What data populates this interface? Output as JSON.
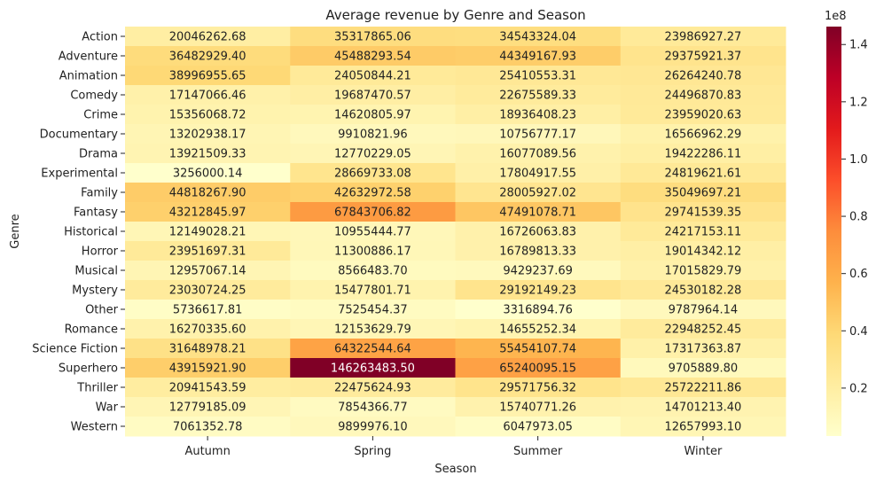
{
  "chart_data": {
    "type": "heatmap",
    "title": "Average revenue by Genre and Season",
    "xlabel": "Season",
    "ylabel": "Genre",
    "x": [
      "Autumn",
      "Spring",
      "Summer",
      "Winter"
    ],
    "y": [
      "Action",
      "Adventure",
      "Animation",
      "Comedy",
      "Crime",
      "Documentary",
      "Drama",
      "Experimental",
      "Family",
      "Fantasy",
      "Historical",
      "Horror",
      "Musical",
      "Mystery",
      "Other",
      "Romance",
      "Science Fiction",
      "Superhero",
      "Thriller",
      "War",
      "Western"
    ],
    "values": [
      [
        20046262.68,
        35317865.06,
        34543324.04,
        23986927.27
      ],
      [
        36482929.4,
        45488293.54,
        44349167.93,
        29375921.37
      ],
      [
        38996955.65,
        24050844.21,
        25410553.31,
        26264240.78
      ],
      [
        17147066.46,
        19687470.57,
        22675589.33,
        24496870.83
      ],
      [
        15356068.72,
        14620805.97,
        18936408.23,
        23959020.63
      ],
      [
        13202938.17,
        9910821.96,
        10756777.17,
        16566962.29
      ],
      [
        13921509.33,
        12770229.05,
        16077089.56,
        19422286.11
      ],
      [
        3256000.14,
        28669733.08,
        17804917.55,
        24819621.61
      ],
      [
        44818267.9,
        42632972.58,
        28005927.02,
        35049697.21
      ],
      [
        43212845.97,
        67843706.82,
        47491078.71,
        29741539.35
      ],
      [
        12149028.21,
        10955444.77,
        16726063.83,
        24217153.11
      ],
      [
        23951697.31,
        11300886.17,
        16789813.33,
        19014342.12
      ],
      [
        12957067.14,
        8566483.7,
        9429237.69,
        17015829.79
      ],
      [
        23030724.25,
        15477801.71,
        29192149.23,
        24530182.28
      ],
      [
        5736617.81,
        7525454.37,
        3316894.76,
        9787964.14
      ],
      [
        16270335.6,
        12153629.79,
        14655252.34,
        22948252.45
      ],
      [
        31648978.21,
        64322544.64,
        55454107.74,
        17317363.87
      ],
      [
        43915921.9,
        146263483.5,
        65240095.15,
        9705889.8
      ],
      [
        20941543.59,
        22475624.93,
        29571756.32,
        25722211.86
      ],
      [
        12779185.09,
        7854366.77,
        15740771.26,
        14701213.4
      ],
      [
        7061352.78,
        9899976.1,
        6047973.05,
        12657993.1
      ]
    ],
    "value_labels": [
      [
        "20046262.68",
        "35317865.06",
        "34543324.04",
        "23986927.27"
      ],
      [
        "36482929.40",
        "45488293.54",
        "44349167.93",
        "29375921.37"
      ],
      [
        "38996955.65",
        "24050844.21",
        "25410553.31",
        "26264240.78"
      ],
      [
        "17147066.46",
        "19687470.57",
        "22675589.33",
        "24496870.83"
      ],
      [
        "15356068.72",
        "14620805.97",
        "18936408.23",
        "23959020.63"
      ],
      [
        "13202938.17",
        "9910821.96",
        "10756777.17",
        "16566962.29"
      ],
      [
        "13921509.33",
        "12770229.05",
        "16077089.56",
        "19422286.11"
      ],
      [
        "3256000.14",
        "28669733.08",
        "17804917.55",
        "24819621.61"
      ],
      [
        "44818267.90",
        "42632972.58",
        "28005927.02",
        "35049697.21"
      ],
      [
        "43212845.97",
        "67843706.82",
        "47491078.71",
        "29741539.35"
      ],
      [
        "12149028.21",
        "10955444.77",
        "16726063.83",
        "24217153.11"
      ],
      [
        "23951697.31",
        "11300886.17",
        "16789813.33",
        "19014342.12"
      ],
      [
        "12957067.14",
        "8566483.70",
        "9429237.69",
        "17015829.79"
      ],
      [
        "23030724.25",
        "15477801.71",
        "29192149.23",
        "24530182.28"
      ],
      [
        "5736617.81",
        "7525454.37",
        "3316894.76",
        "9787964.14"
      ],
      [
        "16270335.60",
        "12153629.79",
        "14655252.34",
        "22948252.45"
      ],
      [
        "31648978.21",
        "64322544.64",
        "55454107.74",
        "17317363.87"
      ],
      [
        "43915921.90",
        "146263483.50",
        "65240095.15",
        "9705889.80"
      ],
      [
        "20941543.59",
        "22475624.93",
        "29571756.32",
        "25722211.86"
      ],
      [
        "12779185.09",
        "7854366.77",
        "15740771.26",
        "14701213.40"
      ],
      [
        "7061352.78",
        "9899976.10",
        "6047973.05",
        "12657993.10"
      ]
    ],
    "colormap": "YlOrRd",
    "colormap_stops": [
      "#ffffcc",
      "#ffeda0",
      "#fed976",
      "#feb24c",
      "#fd8d3c",
      "#fc4e2a",
      "#e31a1c",
      "#bd0026",
      "#800026"
    ],
    "color_range": [
      3256000.14,
      146263483.5
    ],
    "colorbar": {
      "ticks": [
        0.2,
        0.4,
        0.6,
        0.8,
        1.0,
        1.2,
        1.4
      ],
      "tick_labels": [
        "0.2",
        "0.4",
        "0.6",
        "0.8",
        "1.0",
        "1.2",
        "1.4"
      ],
      "multiplier": 100000000,
      "offset_text": "1e8"
    },
    "legend": "colorbar-right",
    "grid": false
  }
}
